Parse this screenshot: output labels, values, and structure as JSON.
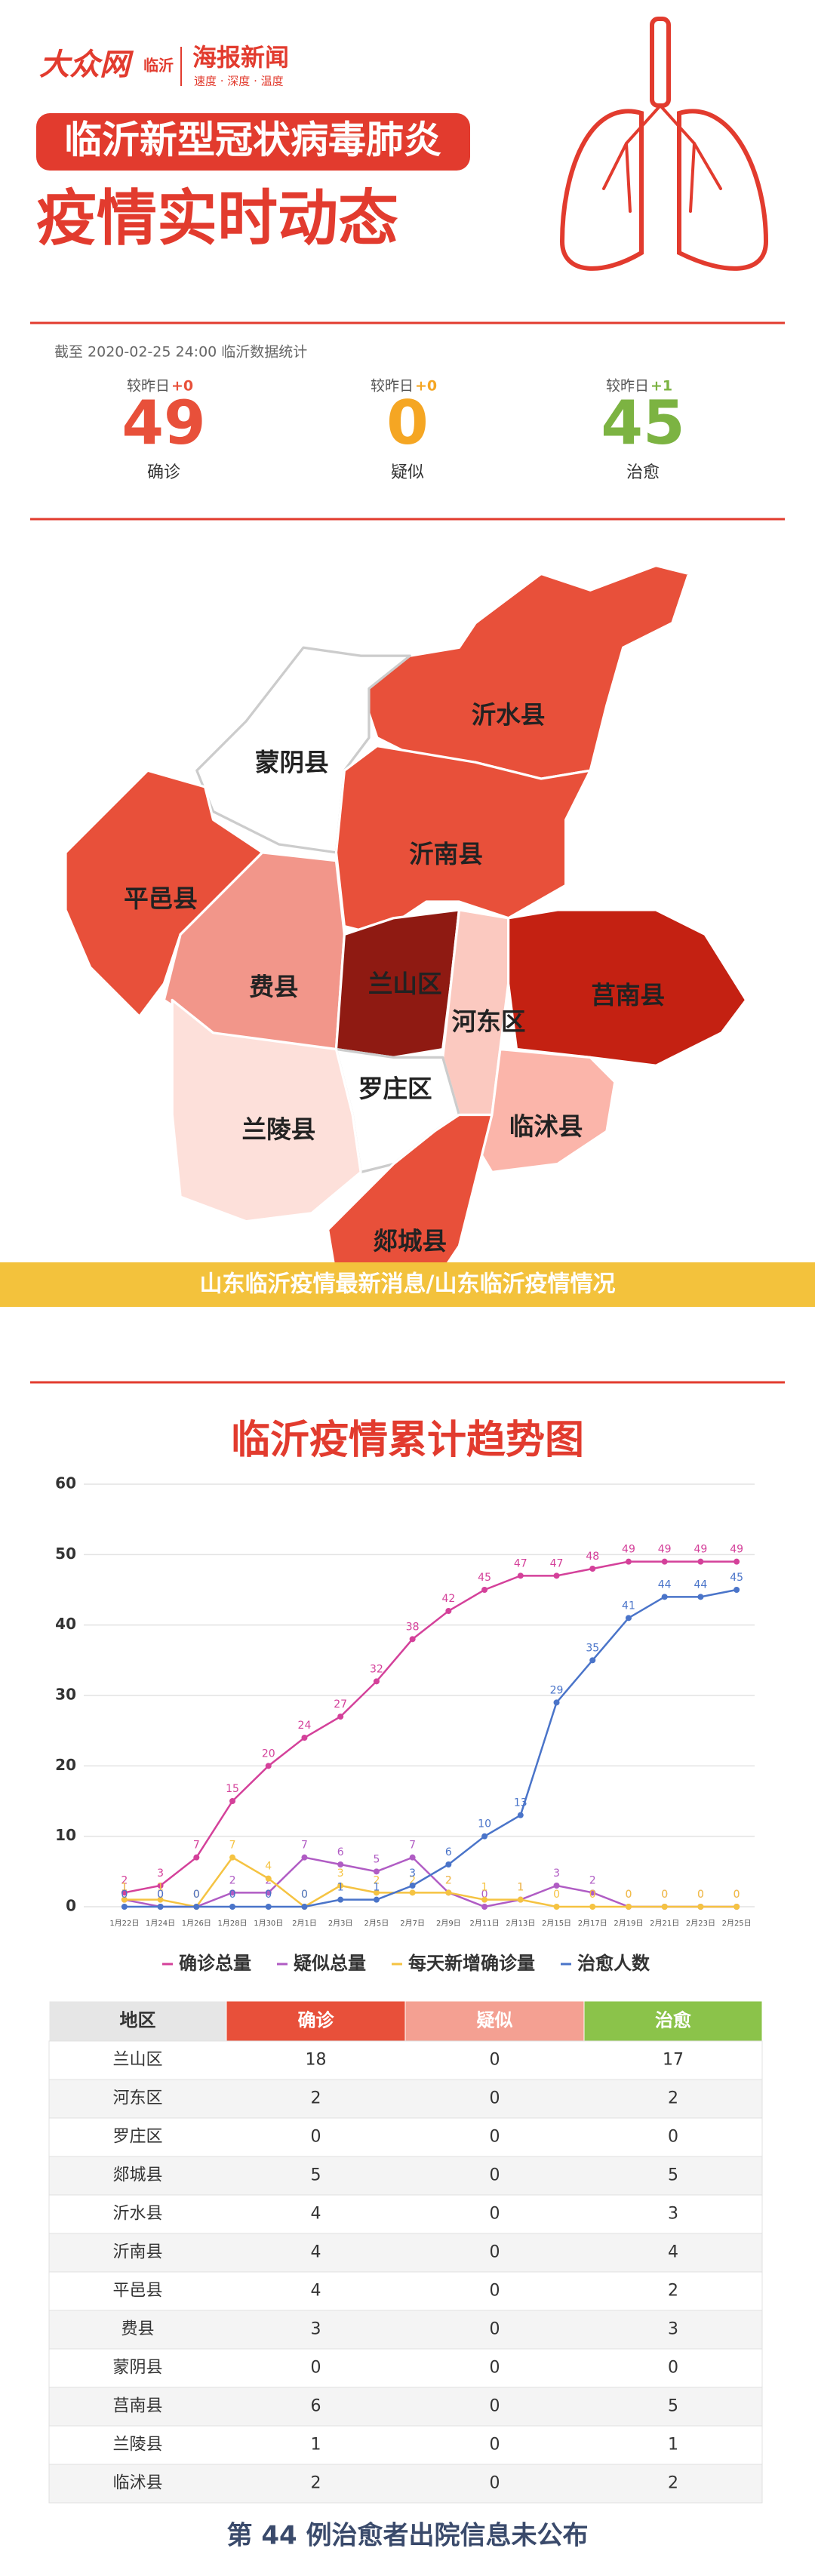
{
  "header": {
    "logo": "大众网",
    "logo_sub": "临沂",
    "brand": "海报新闻",
    "slogan": "速度 · 深度 · 温度",
    "title": "临沂新型冠状病毒肺炎",
    "subtitle": "疫情实时动态"
  },
  "stats": {
    "as_of": "截至 2020-02-25 24:00  临沂数据统计",
    "items": [
      {
        "change_label": "较昨日",
        "change": "+0",
        "value": 49,
        "label": "确诊",
        "color": "#e8503a"
      },
      {
        "change_label": "较昨日",
        "change": "+0",
        "value": 0,
        "label": "疑似",
        "color": "#f5a623"
      },
      {
        "change_label": "较昨日",
        "change": "+1",
        "value": 45,
        "label": "治愈",
        "color": "#7cb342"
      }
    ]
  },
  "map": {
    "regions": [
      "沂水县",
      "蒙阴县",
      "沂南县",
      "平邑县",
      "费县",
      "兰山区",
      "河东区",
      "莒南县",
      "罗庄区",
      "兰陵县",
      "临沭县",
      "郯城县"
    ],
    "banner": "山东临沂疫情最新消息/山东临沂疫情情况"
  },
  "chart_data": {
    "type": "line",
    "title": "临沂疫情累计趋势图",
    "categories": [
      "1月22日",
      "1月24日",
      "1月26日",
      "1月28日",
      "1月30日",
      "2月1日",
      "2月3日",
      "2月5日",
      "2月7日",
      "2月9日",
      "2月11日",
      "2月13日",
      "2月15日",
      "2月17日",
      "2月19日",
      "2月21日",
      "2月23日",
      "2月25日"
    ],
    "series": [
      {
        "name": "确诊总量",
        "color": "#d4419a",
        "values": [
          2,
          3,
          7,
          15,
          20,
          24,
          27,
          32,
          38,
          42,
          45,
          47,
          47,
          48,
          49,
          49,
          49,
          49
        ]
      },
      {
        "name": "疑似总量",
        "color": "#b05cc4",
        "values": [
          1,
          0,
          0,
          2,
          2,
          7,
          6,
          5,
          7,
          2,
          0,
          1,
          3,
          2,
          0,
          0,
          0,
          0
        ]
      },
      {
        "name": "每天新增确诊量",
        "color": "#f5c342",
        "values": [
          1,
          1,
          0,
          7,
          4,
          0,
          3,
          2,
          2,
          2,
          1,
          1,
          0,
          0,
          0,
          0,
          0,
          0
        ]
      },
      {
        "name": "治愈人数",
        "color": "#4a74c9",
        "values": [
          0,
          0,
          0,
          0,
          0,
          0,
          1,
          1,
          3,
          6,
          10,
          13,
          29,
          35,
          41,
          44,
          44,
          45
        ]
      }
    ],
    "ylim": [
      0,
      60
    ],
    "yticks": [
      0,
      10,
      20,
      30,
      40,
      50,
      60
    ],
    "grid": true
  },
  "table": {
    "columns": [
      "地区",
      "确诊",
      "疑似",
      "治愈"
    ],
    "rows": [
      [
        "兰山区",
        18,
        0,
        17
      ],
      [
        "河东区",
        2,
        0,
        2
      ],
      [
        "罗庄区",
        0,
        0,
        0
      ],
      [
        "郯城县",
        5,
        0,
        5
      ],
      [
        "沂水县",
        4,
        0,
        3
      ],
      [
        "沂南县",
        4,
        0,
        4
      ],
      [
        "平邑县",
        4,
        0,
        2
      ],
      [
        "费县",
        3,
        0,
        3
      ],
      [
        "蒙阴县",
        0,
        0,
        0
      ],
      [
        "莒南县",
        6,
        0,
        5
      ],
      [
        "兰陵县",
        1,
        0,
        1
      ],
      [
        "临沭县",
        2,
        0,
        2
      ]
    ]
  },
  "footer": "第 44 例治愈者出院信息未公布"
}
